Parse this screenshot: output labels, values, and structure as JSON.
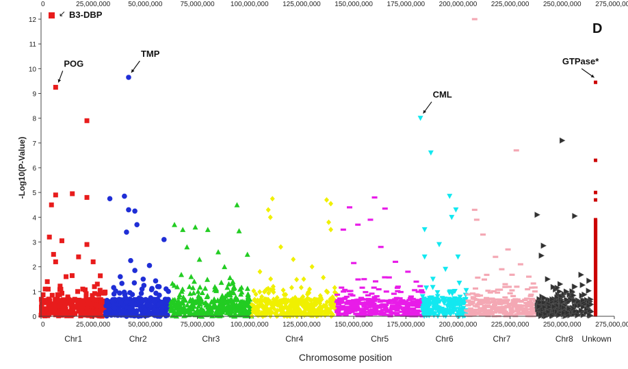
{
  "chart_data": {
    "type": "scatter",
    "title": "",
    "panel_label": "D",
    "xlabel": "Chromosome position",
    "ylabel": "-Log10(P-Value)",
    "xlim": [
      0,
      275000000
    ],
    "ylim": [
      0,
      12
    ],
    "grid": false,
    "legend": {
      "placement": "top-left",
      "label": "B3-DBP",
      "color": "#e81c1c"
    },
    "x_ticks_bottom": [
      {
        "value": 0,
        "label": "0"
      },
      {
        "value": 25000000,
        "label": "25,000,000"
      },
      {
        "value": 50000000,
        "label": "50,000,000"
      },
      {
        "value": 75000000,
        "label": "75,000,000"
      },
      {
        "value": 100000000,
        "label": "100,000,000"
      },
      {
        "value": 125000000,
        "label": "125,000,000"
      },
      {
        "value": 150000000,
        "label": "150,000,000"
      },
      {
        "value": 175000000,
        "label": "175,000,000"
      },
      {
        "value": 200000000,
        "label": "200,000,000"
      },
      {
        "value": 225000000,
        "label": "225,000,000"
      },
      {
        "value": 250000000,
        "label": "250,000,000"
      },
      {
        "value": 275000000,
        "label": "275,000,000"
      }
    ],
    "x_ticks_top": [
      {
        "value": 0,
        "label": "0"
      },
      {
        "value": 25000000,
        "label": "25,000,000"
      },
      {
        "value": 50000000,
        "label": "50,000,000"
      },
      {
        "value": 75000000,
        "label": "75,000,000"
      },
      {
        "value": 100000000,
        "label": "100,000,000"
      },
      {
        "value": 125000000,
        "label": "125,000,000"
      },
      {
        "value": 150000000,
        "label": "150,000,000"
      },
      {
        "value": 175000000,
        "label": "175,000,000"
      },
      {
        "value": 200000000,
        "label": "200,000,000"
      },
      {
        "value": 225000000,
        "label": "225,000,000"
      },
      {
        "value": 250000000,
        "label": "250,000,000"
      },
      {
        "value": 275000000,
        "label": "275,000,000"
      }
    ],
    "y_ticks": [
      0,
      1,
      2,
      3,
      4,
      5,
      6,
      7,
      8,
      9,
      10,
      11,
      12
    ],
    "chromosomes": [
      {
        "name": "Chr1",
        "start": 0,
        "end": 31000000,
        "color": "#e81c1c",
        "marker": "square",
        "peaks": [
          [
            7000000,
            9.25
          ],
          [
            22000000,
            7.9
          ],
          [
            7000000,
            4.9
          ],
          [
            15000000,
            4.95
          ],
          [
            22000000,
            4.8
          ],
          [
            5000000,
            4.5
          ],
          [
            4000000,
            3.2
          ],
          [
            10000000,
            3.05
          ],
          [
            22000000,
            2.9
          ],
          [
            6000000,
            2.5
          ],
          [
            18000000,
            2.4
          ],
          [
            25000000,
            2.2
          ],
          [
            7000000,
            2.2
          ],
          [
            12000000,
            1.6
          ],
          [
            3000000,
            1.4
          ],
          [
            27000000,
            1.3
          ],
          [
            2000000,
            1.1
          ],
          [
            20000000,
            1.1
          ]
        ]
      },
      {
        "name": "Chr2",
        "start": 31000000,
        "end": 62000000,
        "color": "#1f2ed6",
        "marker": "circle",
        "peaks": [
          [
            42000000,
            9.65
          ],
          [
            33000000,
            4.75
          ],
          [
            40000000,
            4.85
          ],
          [
            42000000,
            4.3
          ],
          [
            45000000,
            4.25
          ],
          [
            46000000,
            3.7
          ],
          [
            41000000,
            3.4
          ],
          [
            59000000,
            3.1
          ],
          [
            43000000,
            2.25
          ],
          [
            52000000,
            2.05
          ],
          [
            45000000,
            1.85
          ],
          [
            38000000,
            1.6
          ],
          [
            49000000,
            1.5
          ],
          [
            56000000,
            1.2
          ],
          [
            35000000,
            0.9
          ]
        ]
      },
      {
        "name": "Chr3",
        "start": 62000000,
        "end": 101000000,
        "color": "#22cc22",
        "marker": "triangle",
        "peaks": [
          [
            94000000,
            4.5
          ],
          [
            95000000,
            3.45
          ],
          [
            64000000,
            3.7
          ],
          [
            68000000,
            3.5
          ],
          [
            74000000,
            3.6
          ],
          [
            80000000,
            3.5
          ],
          [
            70000000,
            2.8
          ],
          [
            85000000,
            2.6
          ],
          [
            99000000,
            2.5
          ],
          [
            76000000,
            2.3
          ],
          [
            88000000,
            2.0
          ],
          [
            72000000,
            1.6
          ],
          [
            92000000,
            1.4
          ]
        ]
      },
      {
        "name": "Chr4",
        "start": 101000000,
        "end": 142000000,
        "color": "#f0f000",
        "marker": "diamond",
        "peaks": [
          [
            111000000,
            4.75
          ],
          [
            109000000,
            4.3
          ],
          [
            110000000,
            4.0
          ],
          [
            137000000,
            4.7
          ],
          [
            139000000,
            4.55
          ],
          [
            138000000,
            3.8
          ],
          [
            139000000,
            3.5
          ],
          [
            115000000,
            2.8
          ],
          [
            121000000,
            2.3
          ],
          [
            130000000,
            2.0
          ],
          [
            105000000,
            1.8
          ],
          [
            126000000,
            1.5
          ]
        ]
      },
      {
        "name": "Chr5",
        "start": 142000000,
        "end": 183000000,
        "color": "#e81ce8",
        "marker": "dash",
        "peaks": [
          [
            160000000,
            4.8
          ],
          [
            148000000,
            4.4
          ],
          [
            165000000,
            4.35
          ],
          [
            152000000,
            3.7
          ],
          [
            158000000,
            3.9
          ],
          [
            145000000,
            3.5
          ],
          [
            163000000,
            2.8
          ],
          [
            150000000,
            2.15
          ],
          [
            170000000,
            2.2
          ],
          [
            176000000,
            1.8
          ],
          [
            155000000,
            1.5
          ],
          [
            180000000,
            1.4
          ]
        ]
      },
      {
        "name": "Chr6",
        "start": 183000000,
        "end": 204000000,
        "color": "#12e8f0",
        "marker": "downtriangle",
        "peaks": [
          [
            182000000,
            8.0
          ],
          [
            187000000,
            6.6
          ],
          [
            196000000,
            4.85
          ],
          [
            197000000,
            4.0
          ],
          [
            199000000,
            4.3
          ],
          [
            184000000,
            3.5
          ],
          [
            191000000,
            2.9
          ],
          [
            200000000,
            2.4
          ],
          [
            184000000,
            2.4
          ],
          [
            194000000,
            1.9
          ],
          [
            188000000,
            1.5
          ]
        ]
      },
      {
        "name": "Chr7",
        "start": 204000000,
        "end": 238000000,
        "color": "#f4a8b4",
        "marker": "dash",
        "peaks": [
          [
            208000000,
            12.0
          ],
          [
            228000000,
            6.7
          ],
          [
            208000000,
            4.3
          ],
          [
            209000000,
            3.9
          ],
          [
            212000000,
            3.3
          ],
          [
            224000000,
            2.7
          ],
          [
            218000000,
            2.4
          ],
          [
            230000000,
            2.1
          ],
          [
            221000000,
            1.9
          ],
          [
            234000000,
            1.6
          ]
        ]
      },
      {
        "name": "Chr8",
        "start": 238000000,
        "end": 264000000,
        "color": "#303030",
        "marker": "righttriangle",
        "peaks": [
          [
            250000000,
            7.1
          ],
          [
            238000000,
            4.1
          ],
          [
            256000000,
            4.05
          ],
          [
            241000000,
            2.85
          ],
          [
            240000000,
            2.45
          ],
          [
            243000000,
            1.5
          ],
          [
            249000000,
            1.3
          ],
          [
            256000000,
            1.2
          ],
          [
            252000000,
            1.0
          ]
        ]
      },
      {
        "name": "Unkown",
        "start": 264000000,
        "end": 269000000,
        "color": "#cc0000",
        "marker": "bar",
        "peaks": [
          [
            266000000,
            9.45
          ],
          [
            266000000,
            6.3
          ],
          [
            266000000,
            5.0
          ],
          [
            266000000,
            4.7
          ],
          [
            266000000,
            3.9
          ]
        ]
      }
    ],
    "annotations": [
      {
        "label": "POG",
        "x": 7000000,
        "y": 9.25
      },
      {
        "label": "TMP",
        "x": 42000000,
        "y": 9.65
      },
      {
        "label": "CML",
        "x": 182000000,
        "y": 8.0
      },
      {
        "label": "GTPase*",
        "x": 266000000,
        "y": 9.45
      }
    ]
  }
}
